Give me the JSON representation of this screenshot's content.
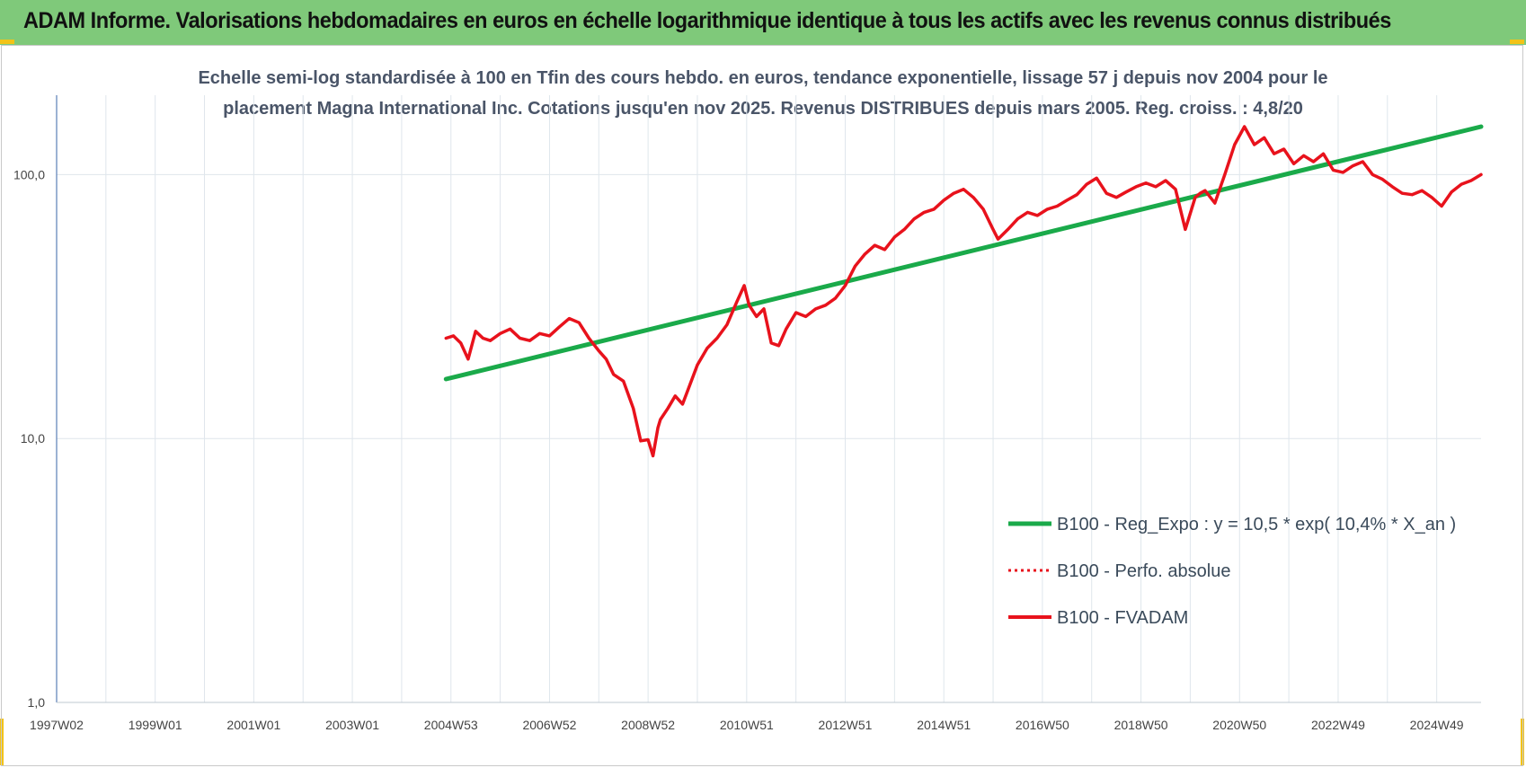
{
  "header": {
    "title": "ADAM Informe. Valorisations hebdomadaires en euros en échelle logarithmique identique à tous les actifs avec les revenus connus distribués"
  },
  "colors": {
    "header_bg": "#7fc97a",
    "accent_corner": "#f2c318",
    "trend": "#1aaa4a",
    "perf": "#e8121c"
  },
  "chart_data": {
    "type": "line",
    "title_line1": "Echelle semi-log standardisée à 100 en Tfin des cours hebdo. en euros, tendance exponentielle, lissage 57 j depuis nov 2004 pour le",
    "title_line2": "placement Magna International Inc. Cotations jusqu'en nov 2025. Revenus DISTRIBUES depuis mars 2005. Reg. croiss. : 4,8/20",
    "y_scale": "log",
    "ylim": [
      1,
      200
    ],
    "y_ticks": [
      {
        "value": 1,
        "label": "1,0"
      },
      {
        "value": 10,
        "label": "10,0"
      },
      {
        "value": 100,
        "label": "100,0"
      }
    ],
    "xlim": [
      1997.0,
      2025.9
    ],
    "x_ticks": [
      {
        "x": 1997.0,
        "label": "1997W02"
      },
      {
        "x": 1999.0,
        "label": "1999W01"
      },
      {
        "x": 2001.0,
        "label": "2001W01"
      },
      {
        "x": 2003.0,
        "label": "2003W01"
      },
      {
        "x": 2005.0,
        "label": "2004W53"
      },
      {
        "x": 2007.0,
        "label": "2006W52"
      },
      {
        "x": 2009.0,
        "label": "2008W52"
      },
      {
        "x": 2011.0,
        "label": "2010W51"
      },
      {
        "x": 2013.0,
        "label": "2012W51"
      },
      {
        "x": 2015.0,
        "label": "2014W51"
      },
      {
        "x": 2017.0,
        "label": "2016W50"
      },
      {
        "x": 2019.0,
        "label": "2018W50"
      },
      {
        "x": 2021.0,
        "label": "2020W50"
      },
      {
        "x": 2023.0,
        "label": "2022W49"
      },
      {
        "x": 2025.0,
        "label": "2024W49"
      }
    ],
    "grid": true,
    "legend_position": "bottom-right",
    "legend": [
      {
        "label": "B100 - Reg_Expo : y = 10,5 * exp( 10,4% *  X_an )",
        "style": "solid-thick",
        "color": "#1aaa4a"
      },
      {
        "label": "B100 - Perfo. absolue",
        "style": "dotted",
        "color": "#e8121c"
      },
      {
        "label": "B100 - FVADAM",
        "style": "solid",
        "color": "#e8121c"
      }
    ],
    "series": [
      {
        "name": "B100 - Reg_Expo : y = 10,5 * exp( 10,4% *  X_an )",
        "kind": "trend",
        "x": [
          2004.9,
          2025.9
        ],
        "y": [
          16.8,
          152
        ]
      },
      {
        "name": "B100 - FVADAM",
        "kind": "line",
        "x": [
          2004.9,
          2005.05,
          2005.2,
          2005.35,
          2005.5,
          2005.65,
          2005.8,
          2006.0,
          2006.2,
          2006.4,
          2006.6,
          2006.8,
          2007.0,
          2007.2,
          2007.4,
          2007.6,
          2007.8,
          2008.0,
          2008.15,
          2008.3,
          2008.5,
          2008.7,
          2008.85,
          2009.0,
          2009.1,
          2009.2,
          2009.25,
          2009.4,
          2009.55,
          2009.7,
          2009.85,
          2010.0,
          2010.2,
          2010.4,
          2010.6,
          2010.8,
          2010.95,
          2011.05,
          2011.2,
          2011.35,
          2011.5,
          2011.65,
          2011.8,
          2012.0,
          2012.2,
          2012.4,
          2012.6,
          2012.8,
          2013.0,
          2013.2,
          2013.4,
          2013.6,
          2013.8,
          2014.0,
          2014.2,
          2014.4,
          2014.6,
          2014.8,
          2015.0,
          2015.2,
          2015.4,
          2015.6,
          2015.8,
          2016.0,
          2016.1,
          2016.3,
          2016.5,
          2016.7,
          2016.9,
          2017.1,
          2017.3,
          2017.5,
          2017.7,
          2017.9,
          2018.1,
          2018.3,
          2018.5,
          2018.7,
          2018.9,
          2019.1,
          2019.3,
          2019.5,
          2019.7,
          2019.9,
          2020.1,
          2020.2,
          2020.3,
          2020.5,
          2020.7,
          2020.9,
          2021.1,
          2021.3,
          2021.5,
          2021.7,
          2021.9,
          2022.1,
          2022.3,
          2022.5,
          2022.7,
          2022.9,
          2023.1,
          2023.3,
          2023.5,
          2023.7,
          2023.9,
          2024.1,
          2024.3,
          2024.5,
          2024.7,
          2024.9,
          2025.1,
          2025.3,
          2025.5,
          2025.7,
          2025.9
        ],
        "y": [
          24,
          24.5,
          23,
          20,
          25.5,
          24,
          23.5,
          25,
          26,
          24,
          23.5,
          25,
          24.5,
          26.5,
          28.5,
          27.5,
          24,
          21.5,
          20,
          17.5,
          16.5,
          13,
          9.8,
          9.9,
          8.6,
          11,
          11.8,
          13,
          14.5,
          13.5,
          16,
          19,
          22,
          24,
          27,
          33,
          38,
          32,
          29,
          31,
          23,
          22.5,
          26,
          30,
          29,
          31,
          32,
          34,
          38,
          45,
          50,
          54,
          52,
          58,
          62,
          68,
          72,
          74,
          80,
          85,
          88,
          82,
          74,
          62,
          57,
          62,
          68,
          72,
          70,
          74,
          76,
          80,
          84,
          92,
          97,
          85,
          82,
          86,
          90,
          93,
          90,
          95,
          88,
          62,
          82,
          85,
          87,
          78,
          100,
          130,
          152,
          130,
          138,
          120,
          125,
          110,
          118,
          112,
          120,
          104,
          102,
          108,
          112,
          100,
          96,
          90,
          85,
          84,
          87,
          82,
          76,
          86,
          92,
          95,
          100
        ]
      }
    ]
  }
}
